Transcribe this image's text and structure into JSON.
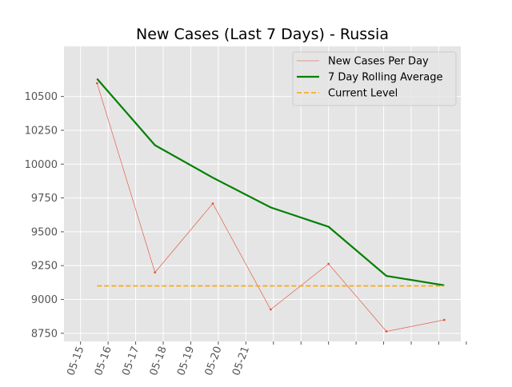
{
  "chart_data": {
    "type": "line",
    "title": "New Cases (Last 7 Days) - Russia",
    "xlabel": "",
    "ylabel": "",
    "ylim": [
      8690,
      10870
    ],
    "xlim": [
      -0.6,
      13.8
    ],
    "yticks": [
      8750,
      9000,
      9250,
      9500,
      9750,
      10000,
      10250,
      10500
    ],
    "xticks": [
      {
        "pos": 0,
        "label": "05-15"
      },
      {
        "pos": 1,
        "label": "05-16"
      },
      {
        "pos": 2,
        "label": "05-17"
      },
      {
        "pos": 3,
        "label": "05-18"
      },
      {
        "pos": 4,
        "label": "05-19"
      },
      {
        "pos": 5,
        "label": "05-20"
      },
      {
        "pos": 6,
        "label": "05-21"
      },
      {
        "pos": 7,
        "label": ""
      },
      {
        "pos": 8,
        "label": ""
      },
      {
        "pos": 9,
        "label": ""
      },
      {
        "pos": 10,
        "label": ""
      },
      {
        "pos": 11,
        "label": ""
      },
      {
        "pos": 12,
        "label": ""
      },
      {
        "pos": 13,
        "label": ""
      },
      {
        "pos": 14,
        "label": ""
      }
    ],
    "grid": true,
    "legend_position": "top-right",
    "series": [
      {
        "name": "New Cases Per Day",
        "color": "#e24a33",
        "x": [
          0.6,
          2.7,
          4.8,
          6.9,
          9.0,
          11.1,
          13.2
        ],
        "y": [
          10598,
          9200,
          9709,
          8926,
          9263,
          8764,
          8849
        ]
      },
      {
        "name": "7 Day Rolling Average",
        "color": "#008000",
        "x": [
          0.6,
          2.7,
          4.8,
          6.9,
          9.0,
          11.1,
          13.2
        ],
        "y": [
          10631,
          10140,
          9900,
          9680,
          9537,
          9174,
          9105
        ]
      },
      {
        "name": "Current Level",
        "color": "#ffa500",
        "dashed": true,
        "x": [
          0.6,
          13.2
        ],
        "y": [
          9100,
          9100
        ]
      }
    ]
  }
}
